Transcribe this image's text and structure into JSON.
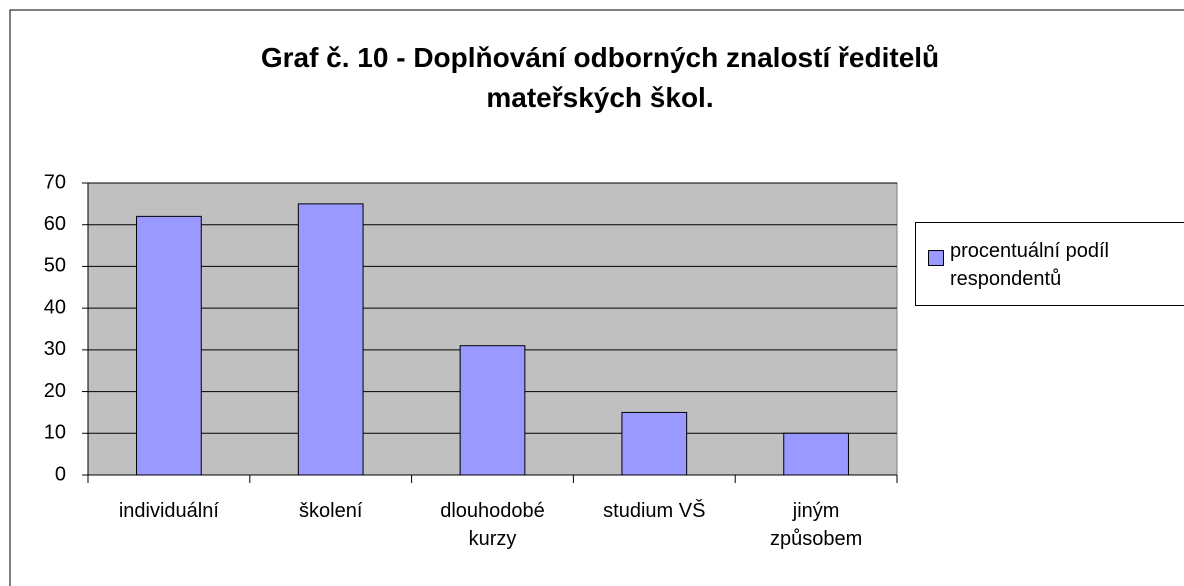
{
  "chart_data": {
    "type": "bar",
    "title": "Graf č. 10 - Doplňování odborných znalostí ředitelů mateřských škol.",
    "categories": [
      "individuální",
      "školení",
      "dlouhodobé kurzy",
      "studium VŠ",
      "jiným způsobem"
    ],
    "series": [
      {
        "name": "procentuální podíl respondentů",
        "color": "#9999ff",
        "values": [
          62,
          65,
          31,
          15,
          10
        ]
      }
    ],
    "ylim": [
      0,
      70
    ],
    "yticks": [
      0,
      10,
      20,
      30,
      40,
      50,
      60,
      70
    ],
    "grid": true,
    "legend": "right"
  }
}
